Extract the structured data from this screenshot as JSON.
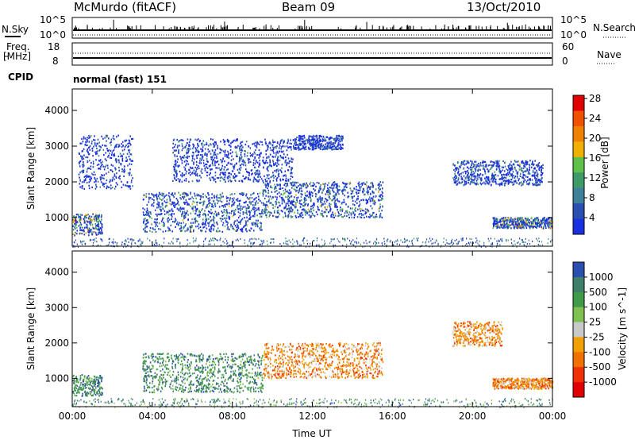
{
  "header": {
    "station": "McMurdo (fitACF)",
    "beam": "Beam 09",
    "date": "13/Oct/2010"
  },
  "top_panels": {
    "nsky_label": "N.Sky",
    "nsearch_label": "N.Search",
    "freq_label": "Freq.",
    "freq_unit": "[MHz]",
    "nave_label": "Nave",
    "cpid_label": "CPID",
    "cpid_value": "normal (fast) 151",
    "nsky_ticks": [
      "10^5",
      "10^0"
    ],
    "nsearch_ticks": [
      "10^5",
      "10^0"
    ],
    "freq_ticks": [
      "18",
      "8"
    ],
    "nave_ticks": [
      "60",
      "0"
    ]
  },
  "colors": {
    "power_scale": [
      "#1a2fe0",
      "#2a4fb0",
      "#3f7f9a",
      "#3f9a6a",
      "#5fc04a",
      "#f0b000",
      "#f08000",
      "#f05000",
      "#e00000"
    ],
    "velocity_scale": [
      "#2a4fb0",
      "#3f7f6a",
      "#3f9a4a",
      "#80c050",
      "#c8c8c8",
      "#f0a000",
      "#f07000",
      "#f03000",
      "#e00000"
    ]
  },
  "chart_data": [
    {
      "type": "heatmap",
      "name": "power-panel",
      "ylabel": "Slant Range [km]",
      "xlabel": "",
      "x_ticks": [
        "00:00",
        "04:00",
        "08:00",
        "12:00",
        "16:00",
        "20:00",
        "00:00"
      ],
      "y_ticks": [
        1000,
        2000,
        3000,
        4000
      ],
      "ylim": [
        200,
        4600
      ],
      "colorbar": {
        "label": "Power [dB]",
        "ticks": [
          "4",
          "8",
          "12",
          "16",
          "20",
          "24",
          "28"
        ]
      },
      "echo_regions": [
        {
          "t": [
            0.0,
            1.5
          ],
          "r": [
            500,
            1100
          ],
          "max": 28
        },
        {
          "t": [
            0.3,
            3.0
          ],
          "r": [
            1800,
            3300
          ],
          "max": 12
        },
        {
          "t": [
            3.5,
            9.5
          ],
          "r": [
            600,
            1700
          ],
          "max": 20
        },
        {
          "t": [
            9.5,
            15.5
          ],
          "r": [
            1000,
            2000
          ],
          "max": 20
        },
        {
          "t": [
            5.0,
            11.0
          ],
          "r": [
            2000,
            3200
          ],
          "max": 12
        },
        {
          "t": [
            11.0,
            13.5
          ],
          "r": [
            2900,
            3300
          ],
          "max": 12
        },
        {
          "t": [
            19.0,
            23.5
          ],
          "r": [
            1900,
            2600
          ],
          "max": 16
        },
        {
          "t": [
            21.0,
            24.0
          ],
          "r": [
            700,
            1000
          ],
          "max": 24
        }
      ]
    },
    {
      "type": "heatmap",
      "name": "velocity-panel",
      "ylabel": "Slant Range [km]",
      "xlabel": "Time UT",
      "x_ticks": [
        "00:00",
        "04:00",
        "08:00",
        "12:00",
        "16:00",
        "20:00",
        "00:00"
      ],
      "y_ticks": [
        1000,
        2000,
        3000,
        4000
      ],
      "ylim": [
        200,
        4600
      ],
      "colorbar": {
        "label": "Velocity [m s^-1]",
        "ticks": [
          "1000",
          "500",
          "100",
          "25",
          "-25",
          "-100",
          "-500",
          "-1000"
        ]
      },
      "echo_regions": [
        {
          "t": [
            0.0,
            1.5
          ],
          "r": [
            500,
            1100
          ],
          "v": 100
        },
        {
          "t": [
            3.5,
            9.5
          ],
          "r": [
            600,
            1700
          ],
          "v": 100
        },
        {
          "t": [
            9.5,
            15.5
          ],
          "r": [
            1000,
            2000
          ],
          "v": -100
        },
        {
          "t": [
            19.0,
            21.5
          ],
          "r": [
            1900,
            2600
          ],
          "v": -100
        },
        {
          "t": [
            21.0,
            24.0
          ],
          "r": [
            700,
            1000
          ],
          "v": -100
        }
      ]
    }
  ]
}
